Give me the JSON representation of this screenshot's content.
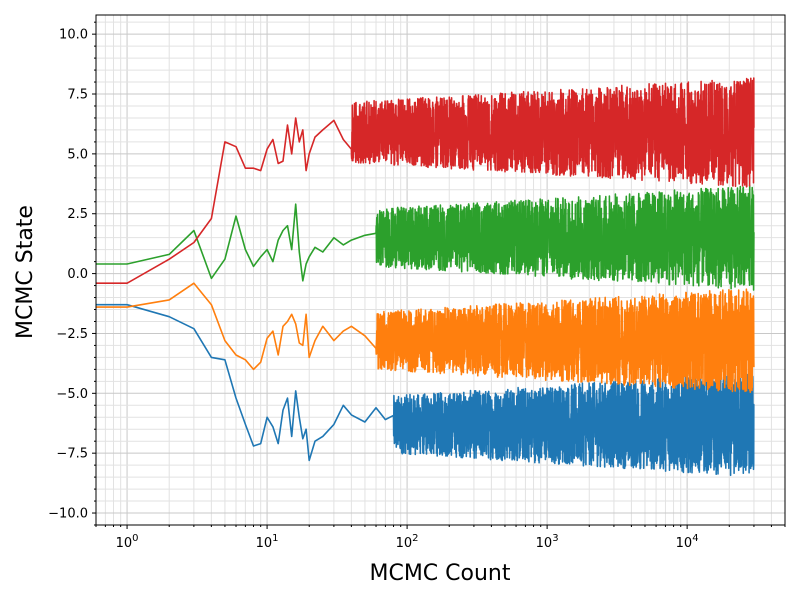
{
  "chart_data": {
    "type": "line",
    "title": "",
    "xlabel": "MCMC Count",
    "ylabel": "MCMC State",
    "xscale": "log",
    "xlim": [
      0.6,
      50000
    ],
    "ylim": [
      -10.5,
      10.8
    ],
    "grid": "major and minor",
    "legend": "none",
    "x_ticks": [
      {
        "value": 1,
        "base": "10",
        "exp": "0"
      },
      {
        "value": 10,
        "base": "10",
        "exp": "1"
      },
      {
        "value": 100,
        "base": "10",
        "exp": "2"
      },
      {
        "value": 1000,
        "base": "10",
        "exp": "3"
      },
      {
        "value": 10000,
        "base": "10",
        "exp": "4"
      }
    ],
    "y_ticks": [
      {
        "value": 10,
        "label": "10.0"
      },
      {
        "value": 7.5,
        "label": "7.5"
      },
      {
        "value": 5,
        "label": "5.0"
      },
      {
        "value": 2.5,
        "label": "2.5"
      },
      {
        "value": 0,
        "label": "0.0"
      },
      {
        "value": -2.5,
        "label": "−2.5"
      },
      {
        "value": -5,
        "label": "−5.0"
      },
      {
        "value": -7.5,
        "label": "−7.5"
      },
      {
        "value": -10,
        "label": "−10.0"
      }
    ],
    "series": [
      {
        "color": "#1f77b4",
        "x": [
          0,
          1,
          2,
          3,
          4,
          5,
          6,
          7,
          8,
          9,
          10,
          11,
          12,
          13,
          14,
          15,
          16,
          17,
          18,
          19,
          20,
          22,
          25,
          30,
          35,
          40,
          50,
          60,
          70,
          80,
          90,
          100,
          150,
          200,
          300,
          500,
          1000,
          2000,
          5000,
          10000,
          20000,
          30000
        ],
        "y": [
          -1.3,
          -1.3,
          -1.8,
          -2.3,
          -3.5,
          -3.6,
          -5.2,
          -6.3,
          -7.2,
          -7.1,
          -6.0,
          -6.4,
          -7.1,
          -5.7,
          -5.2,
          -6.8,
          -4.9,
          -6.0,
          -6.9,
          -6.5,
          -7.8,
          -7.0,
          -6.8,
          -6.3,
          -5.5,
          -5.9,
          -6.2,
          -5.6,
          -6.1,
          -5.8,
          -6.0,
          -6.0,
          -6.2,
          -6.1,
          -6.0,
          -6.2,
          -6.1,
          -6.2,
          -6.3,
          -6.2,
          -6.3,
          -6.3
        ],
        "band_start": 80,
        "band_center": -6.3,
        "band_half_width": 2.2
      },
      {
        "color": "#ff7f0e",
        "x": [
          0,
          1,
          2,
          3,
          4,
          5,
          6,
          7,
          8,
          9,
          10,
          11,
          12,
          13,
          14,
          15,
          16,
          17,
          18,
          19,
          20,
          22,
          25,
          30,
          35,
          40,
          50,
          60,
          70,
          80,
          90,
          100,
          150,
          200,
          300,
          500,
          1000,
          2000,
          5000,
          10000,
          20000,
          30000
        ],
        "y": [
          -1.4,
          -1.4,
          -1.1,
          -0.4,
          -1.3,
          -2.8,
          -3.4,
          -3.6,
          -4.0,
          -3.7,
          -2.7,
          -2.4,
          -3.4,
          -2.2,
          -2.0,
          -1.7,
          -2.1,
          -2.9,
          -3.0,
          -1.7,
          -3.5,
          -2.8,
          -2.2,
          -2.8,
          -2.4,
          -2.2,
          -2.6,
          -2.5,
          -2.8,
          -2.3,
          -2.6,
          -2.5,
          -2.6,
          -2.7,
          -2.6,
          -2.6,
          -2.7,
          -2.7,
          -2.8,
          -2.8,
          -2.8,
          -2.8
        ],
        "band_start": 60,
        "band_center": -2.8,
        "band_half_width": 2.2
      },
      {
        "color": "#2ca02c",
        "x": [
          0,
          1,
          2,
          3,
          4,
          5,
          6,
          7,
          8,
          9,
          10,
          11,
          12,
          13,
          14,
          15,
          16,
          17,
          18,
          19,
          20,
          22,
          25,
          30,
          35,
          40,
          50,
          60,
          70,
          80,
          90,
          100,
          150,
          200,
          300,
          500,
          1000,
          2000,
          5000,
          10000,
          20000,
          30000
        ],
        "y": [
          0.4,
          0.4,
          0.8,
          1.8,
          -0.2,
          0.6,
          2.4,
          1.0,
          0.3,
          0.7,
          1.0,
          0.5,
          1.4,
          1.8,
          2.0,
          1.0,
          2.9,
          0.9,
          -0.3,
          0.4,
          0.7,
          1.1,
          0.9,
          1.5,
          1.2,
          1.4,
          1.6,
          1.5,
          1.3,
          1.6,
          1.5,
          1.6,
          1.5,
          1.6,
          1.5,
          1.6,
          1.5,
          1.6,
          1.5,
          1.5,
          1.5,
          1.5
        ],
        "band_start": 60,
        "band_center": 1.5,
        "band_half_width": 2.2
      },
      {
        "color": "#d62728",
        "x": [
          0,
          1,
          2,
          3,
          4,
          5,
          6,
          7,
          8,
          9,
          10,
          11,
          12,
          13,
          14,
          15,
          16,
          17,
          18,
          19,
          20,
          22,
          25,
          30,
          35,
          40,
          50,
          60,
          70,
          80,
          90,
          100,
          150,
          200,
          300,
          500,
          1000,
          2000,
          5000,
          10000,
          20000,
          30000
        ],
        "y": [
          -0.4,
          -0.4,
          0.6,
          1.3,
          2.3,
          5.5,
          5.3,
          4.4,
          4.4,
          4.3,
          5.2,
          5.6,
          4.6,
          4.7,
          6.2,
          5.0,
          6.5,
          5.5,
          6.0,
          4.3,
          5.0,
          5.7,
          6.0,
          6.4,
          5.6,
          6.7,
          5.8,
          6.3,
          6.0,
          5.8,
          6.1,
          5.9,
          6.0,
          6.0,
          5.9,
          5.9,
          5.8,
          5.9,
          5.8,
          5.8,
          5.8,
          5.8
        ],
        "band_start": 40,
        "band_center": 5.9,
        "band_half_width": 2.3
      }
    ]
  }
}
